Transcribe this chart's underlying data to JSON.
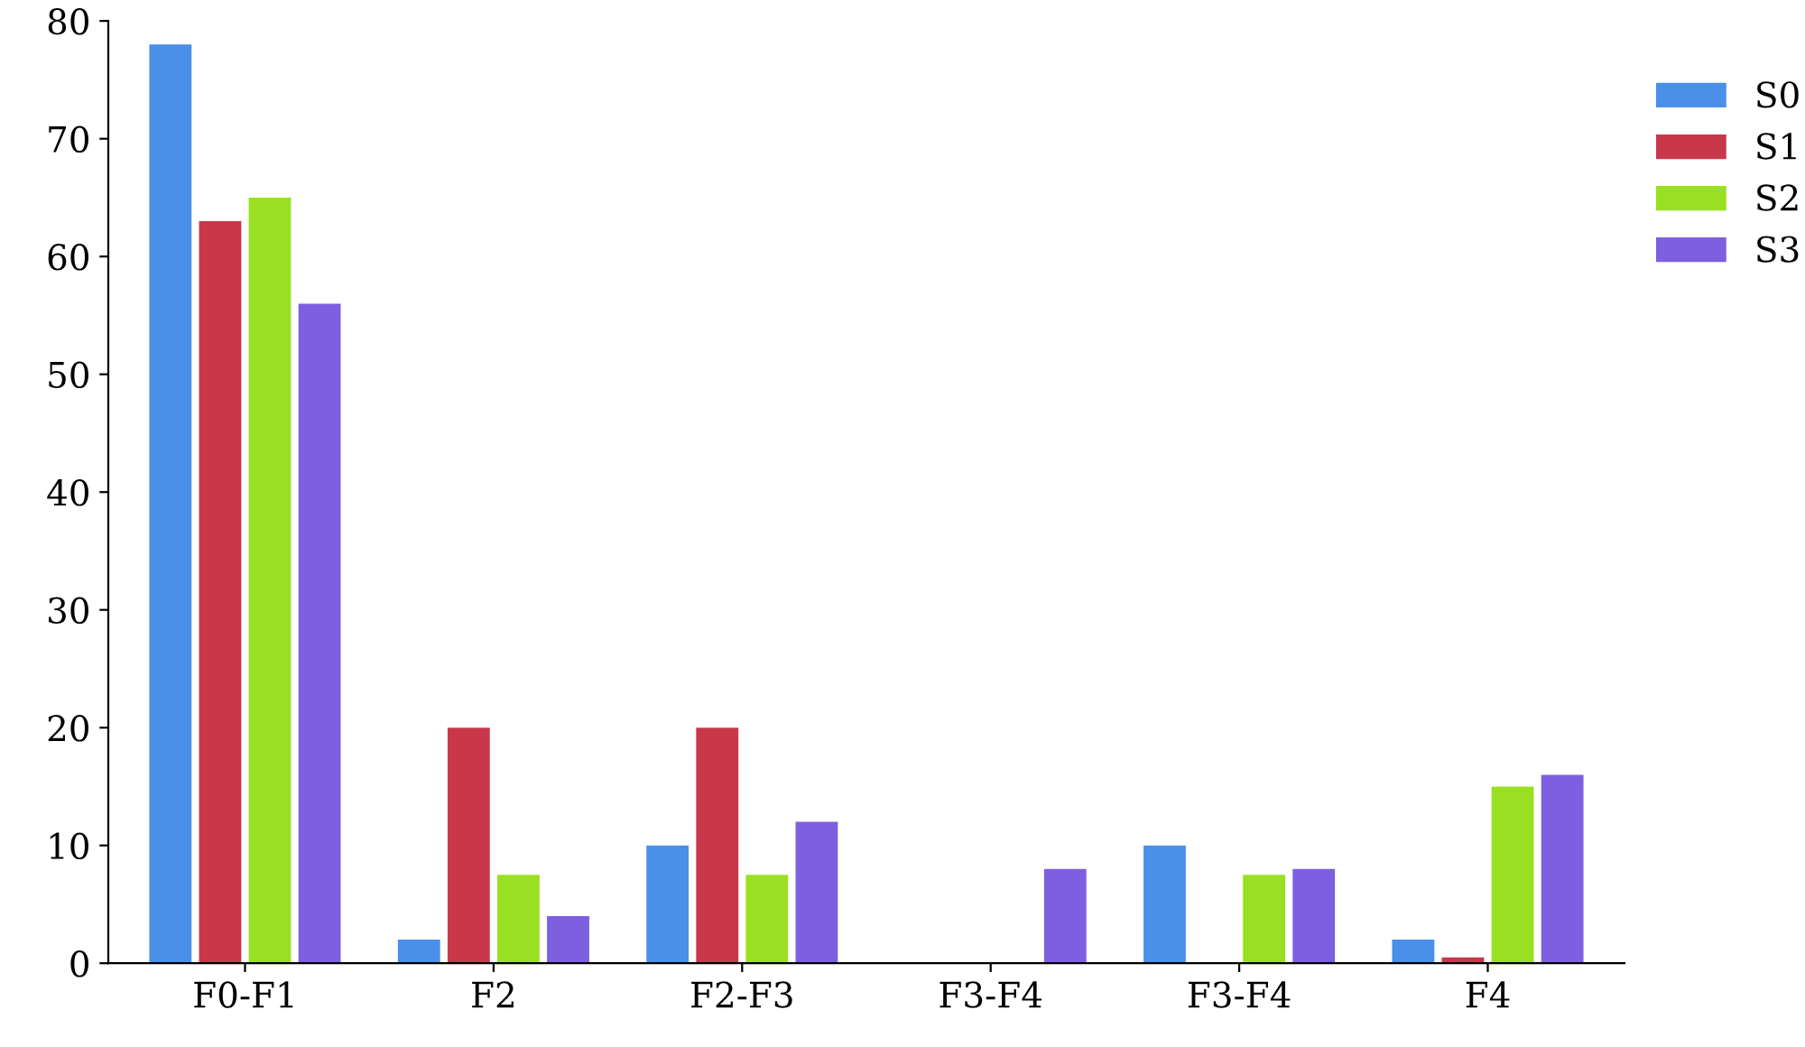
{
  "chart_data": {
    "type": "bar",
    "categories": [
      "F0-F1",
      "F2",
      "F2-F3",
      "F3-F4",
      "F3-F4",
      "F4"
    ],
    "series": [
      {
        "name": "S0",
        "color": "#4a8fe8",
        "values": [
          78,
          2,
          10,
          0,
          10,
          2
        ]
      },
      {
        "name": "S1",
        "color": "#c8384a",
        "values": [
          63,
          20,
          20,
          0,
          0,
          0.5
        ]
      },
      {
        "name": "S2",
        "color": "#99e022",
        "values": [
          65,
          7.5,
          7.5,
          0,
          7.5,
          15
        ]
      },
      {
        "name": "S3",
        "color": "#7d5fe0",
        "values": [
          56,
          4,
          12,
          8,
          8,
          16
        ]
      }
    ],
    "ylim": [
      0,
      80
    ],
    "yticks": [
      0,
      10,
      20,
      30,
      40,
      50,
      60,
      70,
      80
    ],
    "grid": false,
    "legend": "top right"
  }
}
